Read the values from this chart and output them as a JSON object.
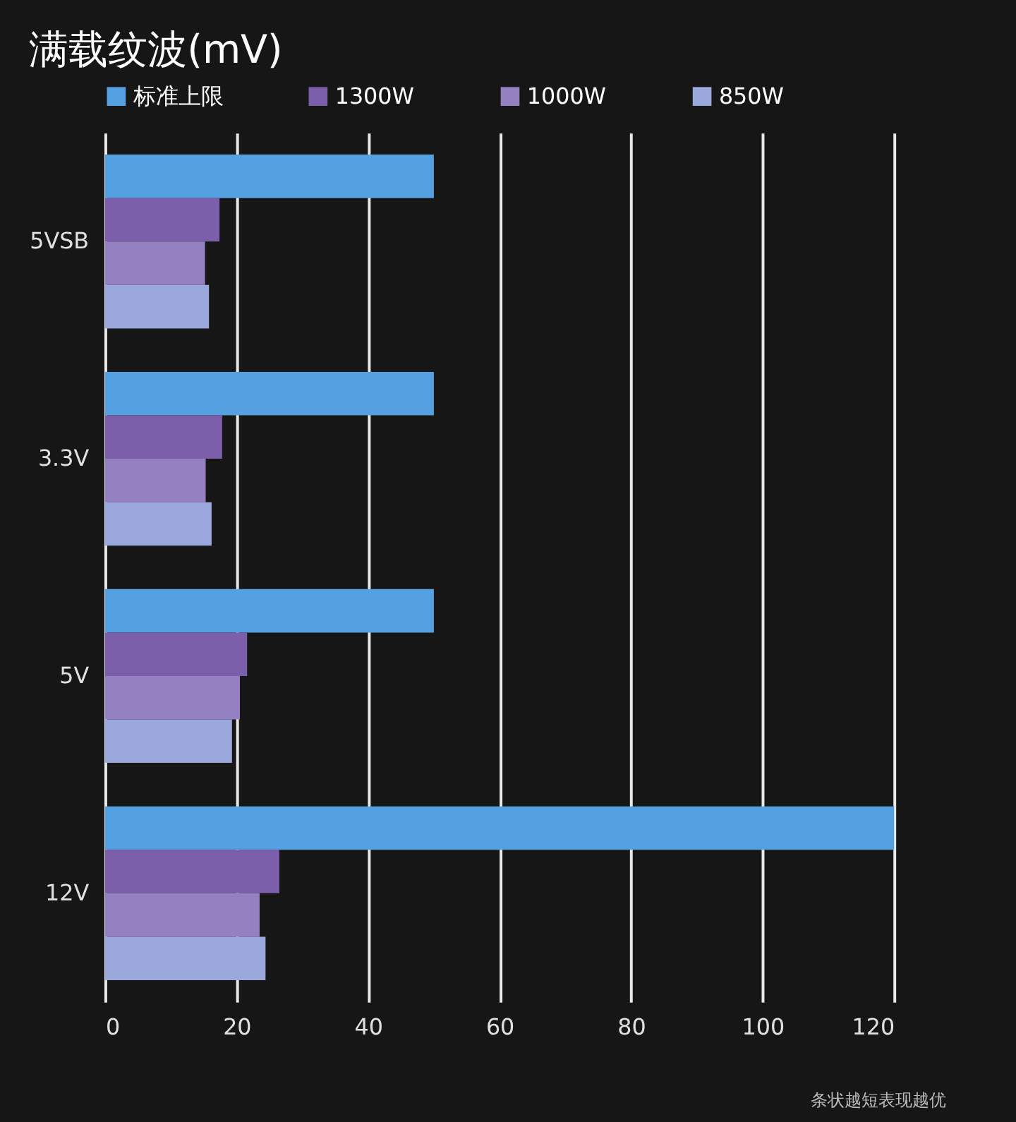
{
  "chart_data": {
    "type": "bar",
    "orientation": "horizontal",
    "title": "满载纹波(mV)",
    "categories": [
      "5VSB",
      "3.3V",
      "5V",
      "12V"
    ],
    "series": [
      {
        "name": "标准上限",
        "color": "#55a0e0",
        "values": [
          50,
          50,
          50,
          120
        ]
      },
      {
        "name": "1300W",
        "color": "#7b5fab",
        "values": [
          17.4,
          17.8,
          21.6,
          26.5
        ]
      },
      {
        "name": "1000W",
        "color": "#9580c2",
        "values": [
          15.2,
          15.3,
          20.5,
          23.5
        ]
      },
      {
        "name": "850W",
        "color": "#9aa8dc",
        "values": [
          15.8,
          16.2,
          19.3,
          24.4
        ]
      }
    ],
    "xlim": [
      0,
      120
    ],
    "xticks": [
      0,
      20,
      40,
      60,
      80,
      100,
      120
    ],
    "grid": "x",
    "legend": "top",
    "annotations": [
      "条状越短表现越优"
    ]
  }
}
